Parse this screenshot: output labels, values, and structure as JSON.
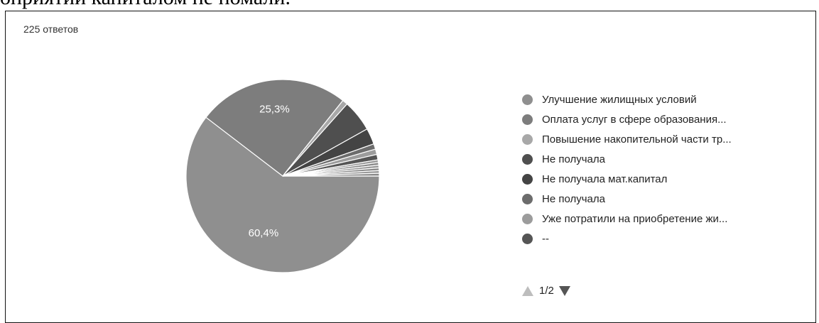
{
  "document_text": "оприятий капиталом не помали.",
  "chart_data": {
    "type": "pie",
    "responses_label": "225 ответов",
    "slices": [
      {
        "label": "Улучшение жилищных условий",
        "value": 60.4,
        "value_label": "60,4%",
        "color": "#8f8f8f"
      },
      {
        "label": "Оплата услуг в сфере образования...",
        "value": 25.3,
        "value_label": "25,3%",
        "color": "#7d7d7d"
      },
      {
        "label": "Повышение накопительной части тр...",
        "value": 0.9,
        "value_label": "",
        "color": "#a8a8a8"
      },
      {
        "label": "Не получала",
        "value": 5.3,
        "value_label": "",
        "color": "#4f4f4f"
      },
      {
        "label": "Не получала мат.капитал",
        "value": 2.7,
        "value_label": "",
        "color": "#444444"
      },
      {
        "label": "Не получала",
        "value": 0.9,
        "value_label": "",
        "color": "#6c6c6c"
      },
      {
        "label": "Уже потратили на приобретение жи...",
        "value": 0.9,
        "value_label": "",
        "color": "#9c9c9c"
      },
      {
        "label": "--",
        "value": 0.9,
        "value_label": "",
        "color": "#555555"
      },
      {
        "label": "",
        "value": 0.45,
        "value_label": "",
        "color": "#999999"
      },
      {
        "label": "",
        "value": 0.45,
        "value_label": "",
        "color": "#888888"
      },
      {
        "label": "",
        "value": 0.45,
        "value_label": "",
        "color": "#999999"
      },
      {
        "label": "",
        "value": 0.45,
        "value_label": "",
        "color": "#888888"
      },
      {
        "label": "",
        "value": 0.45,
        "value_label": "",
        "color": "#999999"
      },
      {
        "label": "",
        "value": 0.45,
        "value_label": "",
        "color": "#888888"
      }
    ],
    "legend_placement": "right",
    "legend_items": [
      {
        "label": "Улучшение жилищных условий",
        "color": "#8f8f8f"
      },
      {
        "label": "Оплата услуг в сфере образования...",
        "color": "#7d7d7d"
      },
      {
        "label": "Повышение накопительной части тр...",
        "color": "#a8a8a8"
      },
      {
        "label": "Не получала",
        "color": "#4f4f4f"
      },
      {
        "label": "Не получала мат.капитал",
        "color": "#444444"
      },
      {
        "label": "Не получала",
        "color": "#6c6c6c"
      },
      {
        "label": "Уже потратили на приобретение жи...",
        "color": "#9c9c9c"
      },
      {
        "label": "--",
        "color": "#555555"
      }
    ],
    "pager": {
      "label": "1/2",
      "up_color": "#bdbdbd",
      "down_color": "#555555"
    }
  }
}
